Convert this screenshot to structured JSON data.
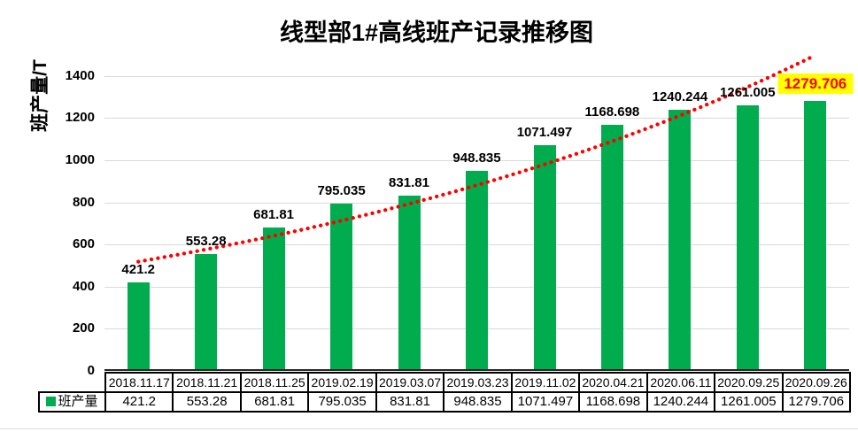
{
  "title": "线型部1#高线班产记录推移图",
  "y_axis": {
    "label": "班产量/T",
    "ticks": [
      0,
      200,
      400,
      600,
      800,
      1000,
      1200,
      1400
    ],
    "max": 1500
  },
  "legend": {
    "label": "班产量",
    "marker_color": "#00ac4d"
  },
  "colors": {
    "bar": "#00ac4d",
    "trend": "#ff0000",
    "grid": "#d9d9d9",
    "highlight_bg": "#ffff00",
    "highlight_text": "#ff0000"
  },
  "chart_data": {
    "type": "bar",
    "title": "线型部1#高线班产记录推移图",
    "xlabel": "",
    "ylabel": "班产量/T",
    "ylim": [
      0,
      1500
    ],
    "grid": true,
    "legend_position": "table-left",
    "categories": [
      "2018.11.17",
      "2018.11.21",
      "2018.11.25",
      "2019.02.19",
      "2019.03.07",
      "2019.03.23",
      "2019.11.02",
      "2020.04.21",
      "2020.06.11",
      "2020.09.25",
      "2020.09.26"
    ],
    "series": [
      {
        "name": "班产量",
        "values": [
          421.2,
          553.28,
          681.81,
          795.035,
          831.81,
          948.835,
          1071.497,
          1168.698,
          1240.244,
          1261.005,
          1279.706
        ],
        "labels": [
          "421.2",
          "553.28",
          "681.81",
          "795.035",
          "831.81",
          "948.835",
          "1071.497",
          "1168.698",
          "1240.244",
          "1261.005",
          "1279.706"
        ],
        "color": "#00ac4d"
      }
    ],
    "trendline": {
      "fit": "exponential",
      "style": "dotted",
      "color": "#ff0000"
    },
    "highlight_last_label": {
      "background": "#ffff00",
      "text_color": "#ff0000"
    }
  }
}
